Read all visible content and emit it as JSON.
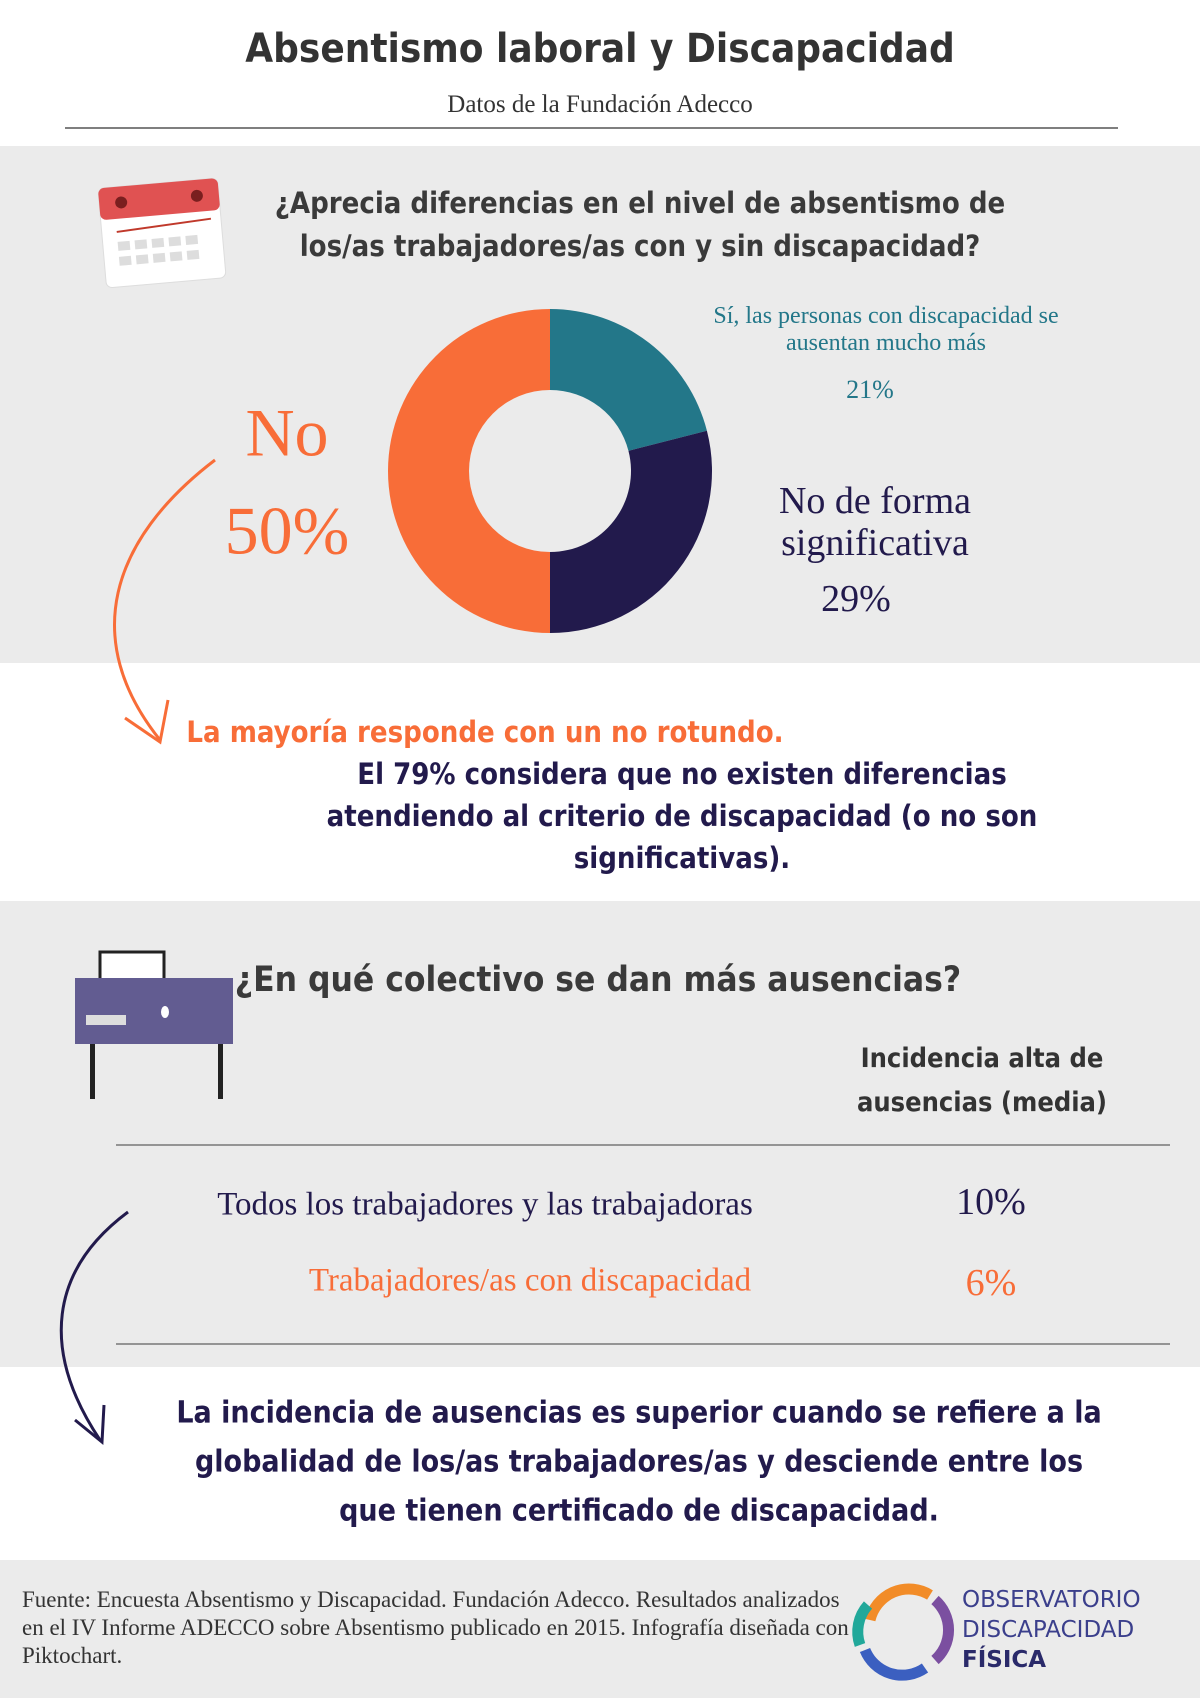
{
  "header": {
    "title": "Absentismo laboral y Discapacidad",
    "subtitle": "Datos de la Fundación Adecco"
  },
  "chart_data": {
    "type": "donut",
    "title": "¿Aprecia diferencias en el nivel de absentismo de los/as trabajadores/as con y sin discapacidad?",
    "categories": [
      "Sí, las personas con discapacidad se ausentan mucho más",
      "No de forma significativa",
      "No"
    ],
    "values": [
      21,
      29,
      50
    ],
    "value_labels": [
      "21%",
      "29%",
      "50%"
    ],
    "colors": [
      "#237789",
      "#221a4c",
      "#f86d38"
    ]
  },
  "notes": {
    "highlight": "La mayoría responde con un no rotundo.",
    "summary": "El 79% considera que no existen diferencias atendiendo al criterio de discapacidad (o no son significativas)."
  },
  "table": {
    "title": "¿En qué colectivo se dan más ausencias?",
    "header": "Incidencia alta de ausencias (media)",
    "rows": [
      [
        "Todos los trabajadores y las trabajadoras",
        "10%"
      ],
      [
        "Trabajadores/as con discapacidad",
        "6%"
      ]
    ],
    "conclusion": "La incidencia de ausencias es superior cuando se refiere a la globalidad de los/as trabajadores/as y desciende entre los que tienen certificado de discapacidad."
  },
  "footer": {
    "source": "Fuente: Encuesta Absentismo y Discapacidad. Fundación Adecco. Resultados analizados en el IV Informe ADECCO sobre Absentismo publicado en 2015. Infografía diseñada con Piktochart.",
    "logo": [
      "OBSERVATORIO",
      "DISCAPACIDAD",
      "FÍSICA"
    ]
  }
}
